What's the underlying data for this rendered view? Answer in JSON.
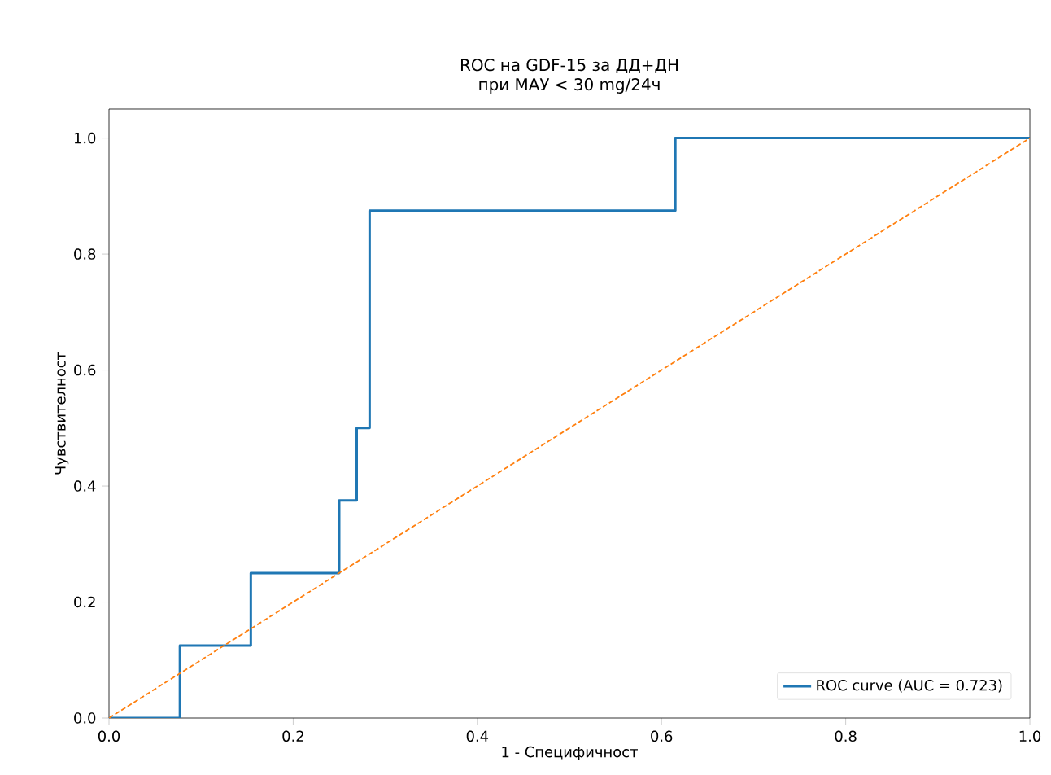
{
  "chart_data": {
    "type": "line",
    "title": "ROC на GDF-15 за ДД+ДН\nпри МАУ < 30 mg/24ч",
    "xlabel": "1 - Специфичност",
    "ylabel": "Чувствителност",
    "xlim": [
      0,
      1
    ],
    "ylim": [
      0,
      1.05
    ],
    "xticks": [
      {
        "value": 0,
        "label": "0.0"
      },
      0.2,
      0.4,
      0.6,
      0.8,
      {
        "value": 1,
        "label": "1.0"
      }
    ],
    "yticks": [
      {
        "value": 0,
        "label": "0.0"
      },
      0.2,
      0.4,
      0.6,
      0.8,
      {
        "value": 1,
        "label": "1.0"
      }
    ],
    "grid": false,
    "legend": "bottom right",
    "marker": "none",
    "series": [
      {
        "name": "ROC curve (AUC = 0.723)",
        "color": "#1f77b4",
        "line_style": "solid",
        "x": [
          0,
          0.077,
          0.077,
          0.154,
          0.154,
          0.25,
          0.25,
          0.269,
          0.269,
          0.283,
          0.283,
          0.615,
          0.615,
          1
        ],
        "values": [
          0,
          0,
          0.125,
          0.125,
          0.25,
          0.25,
          0.375,
          0.375,
          0.5,
          0.5,
          0.875,
          0.875,
          1,
          1
        ]
      },
      {
        "color": "#ff7f0e",
        "line_style": "dashed",
        "x": [
          0,
          1
        ],
        "values": [
          0,
          1
        ]
      }
    ]
  }
}
